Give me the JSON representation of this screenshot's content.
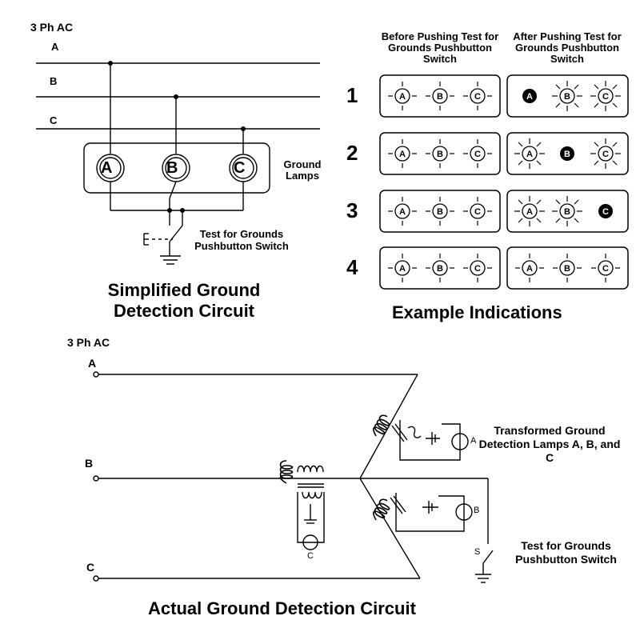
{
  "simplified": {
    "supply": "3 Ph AC",
    "phases": [
      "A",
      "B",
      "C"
    ],
    "lamps": [
      "A",
      "B",
      "C"
    ],
    "lamps_label": "Ground Lamps",
    "switch_label": "Test for Grounds Pushbutton Switch",
    "title": "Simplified Ground Detection Circuit"
  },
  "indications": {
    "before_header": "Before Pushing Test for Grounds Pushbutton Switch",
    "after_header": "After Pushing Test for Grounds Pushbutton Switch",
    "title": "Example Indications",
    "rows": [
      {
        "num": "1",
        "after": [
          "dark",
          "bright",
          "bright"
        ]
      },
      {
        "num": "2",
        "after": [
          "bright",
          "dark",
          "bright"
        ]
      },
      {
        "num": "3",
        "after": [
          "bright",
          "bright",
          "dark"
        ]
      },
      {
        "num": "4",
        "after": [
          "dim",
          "dim",
          "dim"
        ]
      }
    ],
    "lamp_letters": [
      "A",
      "B",
      "C"
    ]
  },
  "actual": {
    "supply": "3 Ph AC",
    "phases": [
      "A",
      "B",
      "C"
    ],
    "lamp_label": "Transformed Ground Detection Lamps A, B, and C",
    "switch_label": "Test for Grounds Pushbutton Switch",
    "switch_letter": "S",
    "lamp_letters": [
      "A",
      "B",
      "C"
    ],
    "title": "Actual Ground Detection Circuit"
  }
}
